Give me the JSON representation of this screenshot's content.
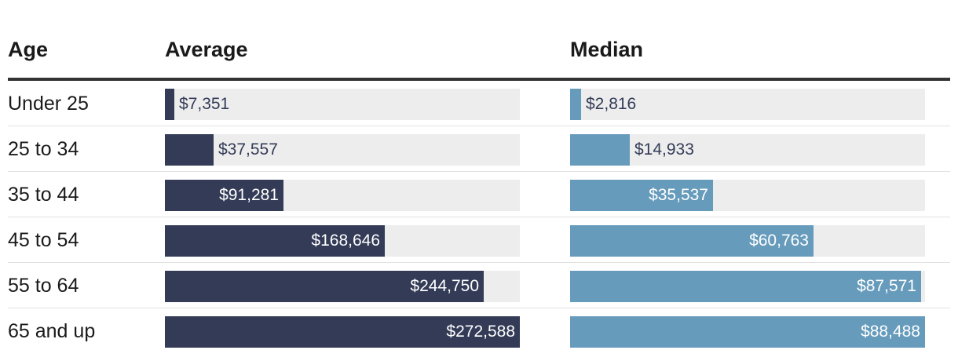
{
  "chart_data": {
    "type": "bar",
    "categories": [
      "Under 25",
      "25 to 34",
      "35 to 44",
      "45 to 54",
      "55 to 64",
      "65 and up"
    ],
    "series": [
      {
        "name": "Average",
        "values": [
          7351,
          37557,
          91281,
          168646,
          244750,
          272588
        ],
        "labels": [
          "$7,351",
          "$37,557",
          "$91,281",
          "$168,646",
          "$244,750",
          "$272,588"
        ],
        "color": "#333b57",
        "xlim": [
          0,
          272588
        ]
      },
      {
        "name": "Median",
        "values": [
          2816,
          14933,
          35537,
          60763,
          87571,
          88488
        ],
        "labels": [
          "$2,816",
          "$14,933",
          "$35,537",
          "$60,763",
          "$87,571",
          "$88,488"
        ],
        "color": "#669bbc",
        "xlim": [
          0,
          88488
        ]
      }
    ],
    "headers": {
      "category": "Age",
      "average": "Average",
      "median": "Median"
    },
    "colors": {
      "track": "#ededed",
      "label_inside": "#ffffff",
      "label_outside": "#333b57"
    }
  }
}
